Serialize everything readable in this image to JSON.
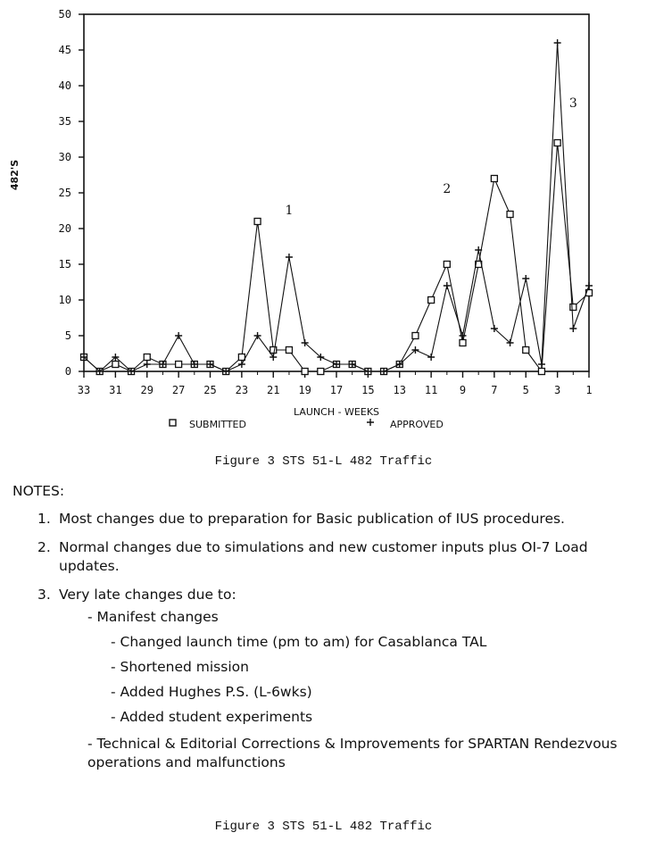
{
  "chart_data": {
    "type": "line",
    "xlabel": "LAUNCH - WEEKS",
    "ylabel": "482'S",
    "x": [
      33,
      32,
      31,
      30,
      29,
      28,
      27,
      26,
      25,
      24,
      23,
      22,
      21,
      20,
      19,
      18,
      17,
      16,
      15,
      14,
      13,
      12,
      11,
      10,
      9,
      8,
      7,
      6,
      5,
      4,
      3,
      2,
      1
    ],
    "x_ticks": [
      33,
      31,
      29,
      27,
      25,
      23,
      21,
      19,
      17,
      15,
      13,
      11,
      9,
      7,
      5,
      3,
      1
    ],
    "xlim": [
      33,
      1
    ],
    "ylim": [
      0,
      50
    ],
    "y_ticks": [
      0,
      5,
      10,
      15,
      20,
      25,
      30,
      35,
      40,
      45,
      50
    ],
    "grid": false,
    "legend_position": "bottom",
    "series": [
      {
        "name": "SUBMITTED",
        "marker": "square",
        "values": [
          2,
          0,
          1,
          0,
          2,
          1,
          1,
          1,
          1,
          0,
          2,
          21,
          3,
          3,
          0,
          0,
          1,
          1,
          0,
          0,
          1,
          5,
          10,
          15,
          4,
          15,
          27,
          22,
          3,
          0,
          32,
          9,
          11
        ]
      },
      {
        "name": "APPROVED",
        "marker": "plus",
        "values": [
          2,
          0,
          2,
          0,
          1,
          1,
          5,
          1,
          1,
          0,
          1,
          5,
          2,
          16,
          4,
          2,
          1,
          1,
          0,
          0,
          1,
          3,
          2,
          12,
          5,
          17,
          6,
          4,
          13,
          1,
          46,
          6,
          12
        ]
      }
    ],
    "annotations": [
      {
        "text": "1",
        "x": 20,
        "y": 22
      },
      {
        "text": "2",
        "x": 10,
        "y": 25
      },
      {
        "text": "3",
        "x": 2,
        "y": 37
      }
    ]
  },
  "caption_top": "Figure 3 STS 51-L 482 Traffic",
  "caption_bottom": "Figure 3 STS 51-L 482 Traffic",
  "notes": {
    "heading": "NOTES:",
    "items": [
      {
        "num": "1.",
        "text": "Most changes due to preparation for Basic publication of IUS procedures."
      },
      {
        "num": "2.",
        "text": "Normal changes due to simulations and new customer inputs plus OI-7 Load updates."
      },
      {
        "num": "3.",
        "text": "Very late changes due to:"
      }
    ],
    "manifest": "- Manifest changes",
    "manifest_items": [
      "- Changed launch time (pm to am) for Casablanca TAL",
      "- Shortened mission",
      "- Added Hughes P.S. (L-6wks)",
      "- Added student experiments"
    ],
    "technical": "- Technical & Editorial Corrections & Improvements for SPARTAN Rendezvous operations and malfunctions"
  }
}
